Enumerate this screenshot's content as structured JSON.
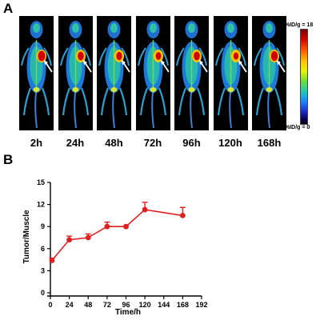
{
  "panel_a": {
    "letter": "A",
    "timepoints": [
      "2h",
      "24h",
      "48h",
      "72h",
      "96h",
      "120h",
      "168h"
    ],
    "tumor_intensity": [
      1.0,
      0.85,
      0.8,
      0.75,
      0.85,
      0.7,
      0.95
    ],
    "colorbar": {
      "max_label": "%ID/g = 18",
      "max_value": "18",
      "min_label": "%ID/g = 0",
      "min_value": "0",
      "colors": [
        "#7a0000",
        "#d40000",
        "#ff5a00",
        "#ffc400",
        "#e9f000",
        "#6edc3c",
        "#1fc8b4",
        "#1b86ff",
        "#1d2fcf",
        "#0a0660"
      ]
    }
  },
  "panel_b": {
    "letter": "B"
  },
  "chart_data": {
    "type": "line",
    "title": "",
    "xlabel": "Time/h",
    "ylabel": "Tumor/Muscle",
    "x": [
      2,
      24,
      48,
      72,
      96,
      120,
      168
    ],
    "series": [
      {
        "values": [
          4.4,
          7.2,
          7.5,
          9.0,
          9.0,
          11.3,
          10.5
        ],
        "error": [
          0.3,
          0.5,
          0.5,
          0.6,
          0.0,
          1.0,
          1.1
        ],
        "color": "#e02020"
      }
    ],
    "xlim": [
      0,
      192
    ],
    "ylim": [
      0,
      15
    ],
    "xticks": [
      "0",
      "24",
      "48",
      "72",
      "96",
      "120",
      "144",
      "168",
      "192"
    ],
    "yticks": [
      "0",
      "3",
      "6",
      "9",
      "12",
      "15"
    ],
    "grid": false,
    "legend": "none"
  }
}
